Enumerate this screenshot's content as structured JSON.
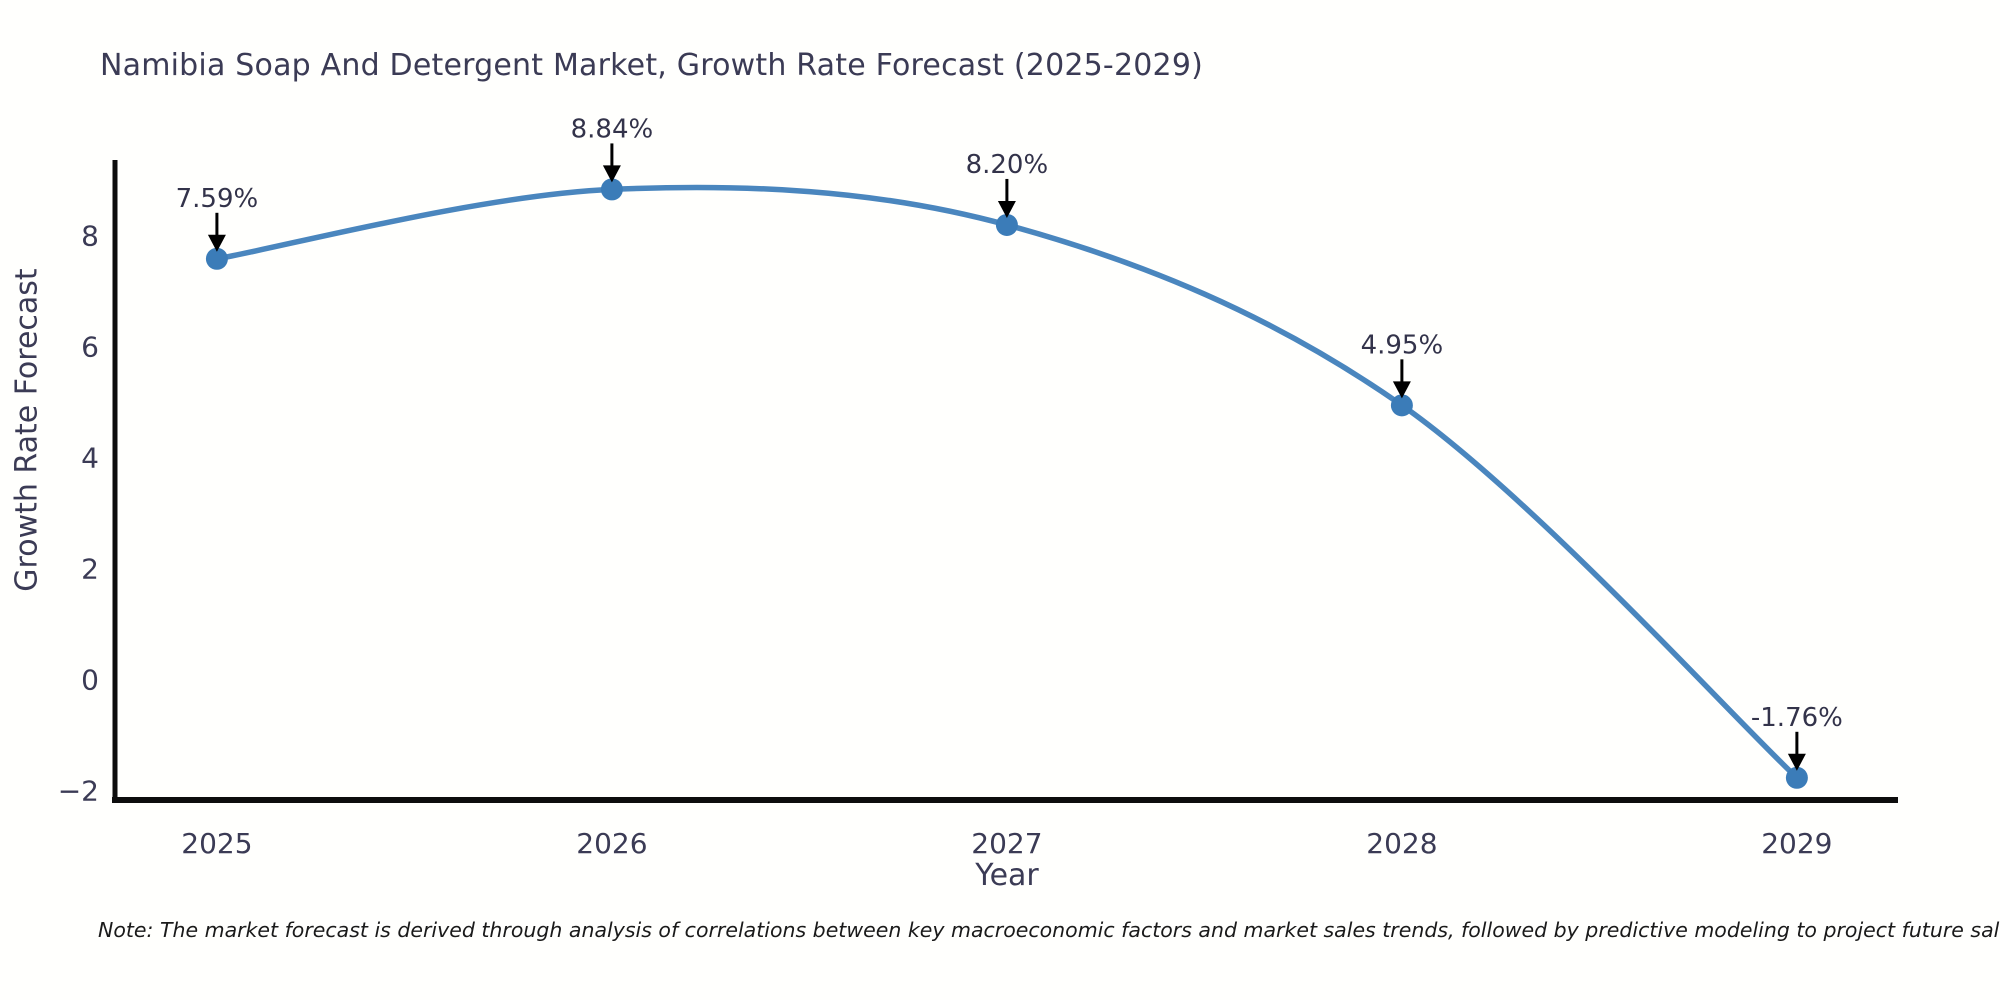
{
  "chart_data": {
    "type": "line",
    "title": "Namibia Soap And Detergent Market, Growth Rate Forecast (2025-2029)",
    "xlabel": "Year",
    "ylabel": "Growth Rate Forecast",
    "x": [
      2025,
      2026,
      2027,
      2028,
      2029
    ],
    "values": [
      7.59,
      8.84,
      8.2,
      4.95,
      -1.76
    ],
    "point_labels": [
      "7.59%",
      "8.84%",
      "8.20%",
      "4.95%",
      "-1.76%"
    ],
    "x_tick_labels": [
      "2025",
      "2026",
      "2027",
      "2028",
      "2029"
    ],
    "y_ticks": [
      8,
      6,
      4,
      2,
      0,
      -2
    ],
    "xlim": [
      2024.742,
      2029.256
    ],
    "ylim": [
      -2.16,
      9.37
    ],
    "grid": false,
    "legend": null,
    "note": "Note: The market forecast is derived through analysis of correlations between key macroeconomic factors and market sales trends, followed by predictive modeling to project future sales"
  },
  "colors": {
    "line": "#4a86be",
    "marker": "#3b7cb8",
    "axis": "#0d0d0d",
    "arrow": "#000000",
    "text": "#3b3b55",
    "note_text": "#1a1a1a",
    "background": "#fffffd"
  }
}
